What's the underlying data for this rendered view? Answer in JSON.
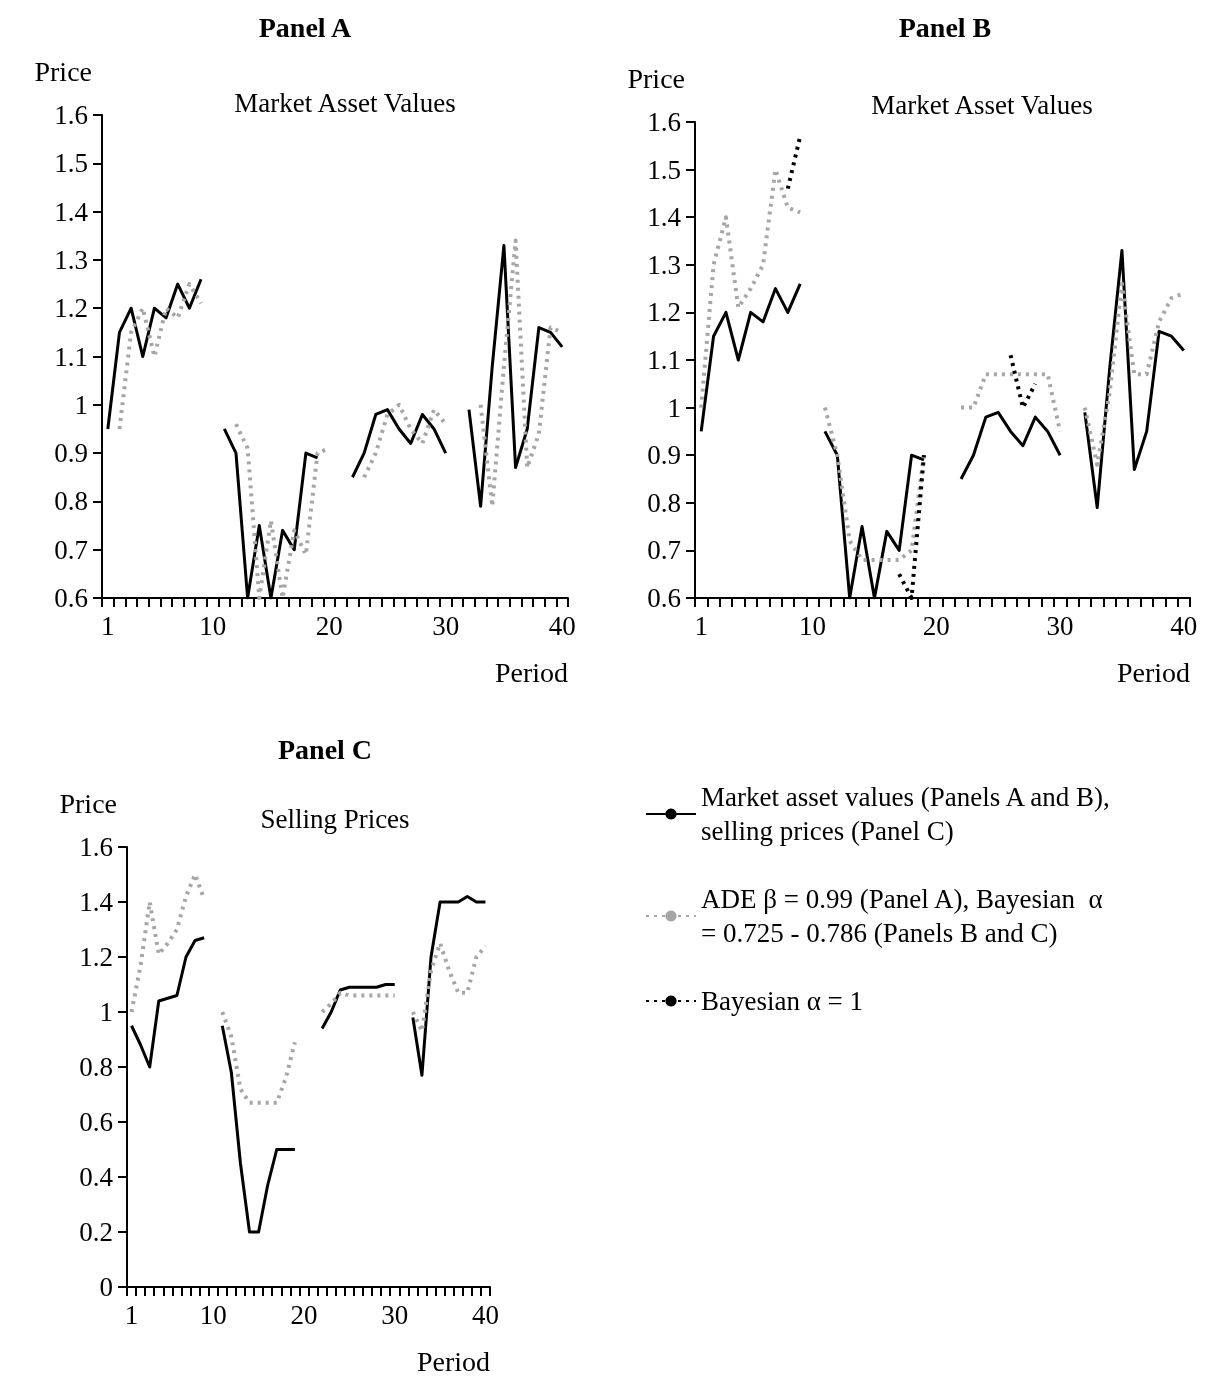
{
  "chart_data": [
    {
      "type": "line",
      "title": "Panel A",
      "subtitle": "Market Asset Values",
      "xlabel": "Period",
      "ylabel": "Price",
      "categories": [
        "1",
        null,
        null,
        null,
        null,
        null,
        null,
        null,
        null,
        "10",
        null,
        null,
        null,
        null,
        null,
        null,
        null,
        null,
        null,
        "20",
        null,
        null,
        null,
        null,
        null,
        null,
        null,
        null,
        null,
        "30",
        null,
        null,
        null,
        null,
        null,
        null,
        null,
        null,
        null,
        "40"
      ],
      "ylim": [
        0.6,
        1.6
      ],
      "yticks": [
        0.6,
        0.7,
        0.8,
        0.9,
        1,
        1.1,
        1.2,
        1.3,
        1.4,
        1.5,
        1.6
      ],
      "grid": false,
      "legend": false,
      "marker": "none",
      "series": [
        {
          "color": "#000000",
          "line_style": "solid",
          "values": [
            0.95,
            1.15,
            1.2,
            1.1,
            1.2,
            1.18,
            1.25,
            1.2,
            1.26,
            null,
            0.95,
            0.9,
            0.6,
            0.75,
            0.6,
            0.74,
            0.7,
            0.9,
            0.89,
            null,
            null,
            0.85,
            0.9,
            0.98,
            0.99,
            0.95,
            0.92,
            0.98,
            0.95,
            0.9,
            null,
            0.99,
            0.79,
            1.08,
            1.33,
            0.87,
            0.95,
            1.16,
            1.15,
            1.12
          ]
        },
        {
          "color": "#a6a6a6",
          "line_style": "dotted",
          "values": [
            null,
            0.95,
            1.15,
            1.2,
            1.1,
            1.2,
            1.18,
            1.25,
            1.21,
            null,
            null,
            0.96,
            0.91,
            0.6,
            0.76,
            0.6,
            0.74,
            0.69,
            0.9,
            0.91,
            null,
            null,
            0.85,
            0.9,
            0.98,
            1.0,
            0.95,
            0.92,
            0.99,
            0.96,
            null,
            null,
            1.0,
            0.79,
            1.08,
            1.34,
            0.87,
            0.94,
            1.16,
            1.15
          ]
        }
      ]
    },
    {
      "type": "line",
      "title": "Panel B",
      "subtitle": "Market Asset Values",
      "xlabel": "Period",
      "ylabel": "Price",
      "categories": [
        "1",
        null,
        null,
        null,
        null,
        null,
        null,
        null,
        null,
        "10",
        null,
        null,
        null,
        null,
        null,
        null,
        null,
        null,
        null,
        "20",
        null,
        null,
        null,
        null,
        null,
        null,
        null,
        null,
        null,
        "30",
        null,
        null,
        null,
        null,
        null,
        null,
        null,
        null,
        null,
        "40"
      ],
      "ylim": [
        0.6,
        1.6
      ],
      "yticks": [
        0.6,
        0.7,
        0.8,
        0.9,
        1,
        1.1,
        1.2,
        1.3,
        1.4,
        1.5,
        1.6
      ],
      "grid": false,
      "legend": "bottom",
      "marker": "none",
      "series": [
        {
          "name": "Market asset values (Panels A and B), selling prices (Panel C)",
          "color": "#000000",
          "line_style": "solid",
          "values": [
            0.95,
            1.15,
            1.2,
            1.1,
            1.2,
            1.18,
            1.25,
            1.2,
            1.26,
            null,
            0.95,
            0.9,
            0.6,
            0.75,
            0.6,
            0.74,
            0.7,
            0.9,
            0.89,
            null,
            null,
            0.85,
            0.9,
            0.98,
            0.99,
            0.95,
            0.92,
            0.98,
            0.95,
            0.9,
            null,
            0.99,
            0.79,
            1.08,
            1.33,
            0.87,
            0.95,
            1.16,
            1.15,
            1.12
          ]
        },
        {
          "name": "ADE β = 0.99 (Panel A), Bayesian  α = 0.725 - 0.786 (Panels B and C)",
          "color": "#a6a6a6",
          "line_style": "dotted",
          "values": [
            1.0,
            1.3,
            1.4,
            1.21,
            1.25,
            1.3,
            1.5,
            1.42,
            1.41,
            null,
            1.0,
            0.9,
            0.72,
            0.68,
            0.68,
            0.68,
            0.68,
            0.7,
            0.9,
            null,
            null,
            1.0,
            1.0,
            1.07,
            1.07,
            1.07,
            1.07,
            1.07,
            1.07,
            0.95,
            null,
            1.0,
            0.88,
            1.03,
            1.26,
            1.07,
            1.07,
            1.18,
            1.23,
            1.24
          ]
        },
        {
          "name": "Bayesian α = 1",
          "color": "#000000",
          "line_style": "dotted",
          "values": [
            null,
            null,
            null,
            null,
            null,
            null,
            null,
            1.46,
            1.57,
            null,
            null,
            null,
            null,
            null,
            null,
            null,
            0.65,
            0.6,
            0.9,
            null,
            null,
            null,
            null,
            null,
            null,
            1.11,
            1.0,
            1.05,
            null,
            null,
            null,
            null,
            null,
            null,
            null,
            null,
            null,
            null,
            null,
            null
          ]
        }
      ]
    },
    {
      "type": "line",
      "title": "Panel C",
      "subtitle": "Selling Prices",
      "xlabel": "Period",
      "ylabel": "Price",
      "categories": [
        "1",
        null,
        null,
        null,
        null,
        null,
        null,
        null,
        null,
        "10",
        null,
        null,
        null,
        null,
        null,
        null,
        null,
        null,
        null,
        "20",
        null,
        null,
        null,
        null,
        null,
        null,
        null,
        null,
        null,
        "30",
        null,
        null,
        null,
        null,
        null,
        null,
        null,
        null,
        null,
        "40"
      ],
      "ylim": [
        0,
        1.6
      ],
      "yticks": [
        0,
        0.2,
        0.4,
        0.6,
        0.8,
        1,
        1.2,
        1.4,
        1.6
      ],
      "grid": false,
      "legend": false,
      "marker": "none",
      "series": [
        {
          "color": "#000000",
          "line_style": "solid",
          "values": [
            0.95,
            0.88,
            0.8,
            1.04,
            1.05,
            1.06,
            1.2,
            1.26,
            1.27,
            null,
            0.95,
            0.78,
            0.45,
            0.2,
            0.2,
            0.37,
            0.5,
            0.5,
            0.5,
            null,
            null,
            0.94,
            1.0,
            1.08,
            1.09,
            1.09,
            1.09,
            1.09,
            1.1,
            1.1,
            null,
            0.98,
            0.77,
            1.2,
            1.4,
            1.4,
            1.4,
            1.42,
            1.4,
            1.4
          ]
        },
        {
          "color": "#a6a6a6",
          "line_style": "dotted",
          "values": [
            1.0,
            1.17,
            1.4,
            1.21,
            1.25,
            1.3,
            1.42,
            1.5,
            1.41,
            null,
            1.0,
            0.91,
            0.72,
            0.67,
            0.67,
            0.67,
            0.67,
            0.76,
            0.89,
            null,
            null,
            1.0,
            1.03,
            1.07,
            1.06,
            1.06,
            1.06,
            1.06,
            1.06,
            1.06,
            null,
            1.0,
            0.93,
            1.15,
            1.25,
            1.15,
            1.07,
            1.07,
            1.2,
            1.24
          ]
        }
      ]
    }
  ]
}
